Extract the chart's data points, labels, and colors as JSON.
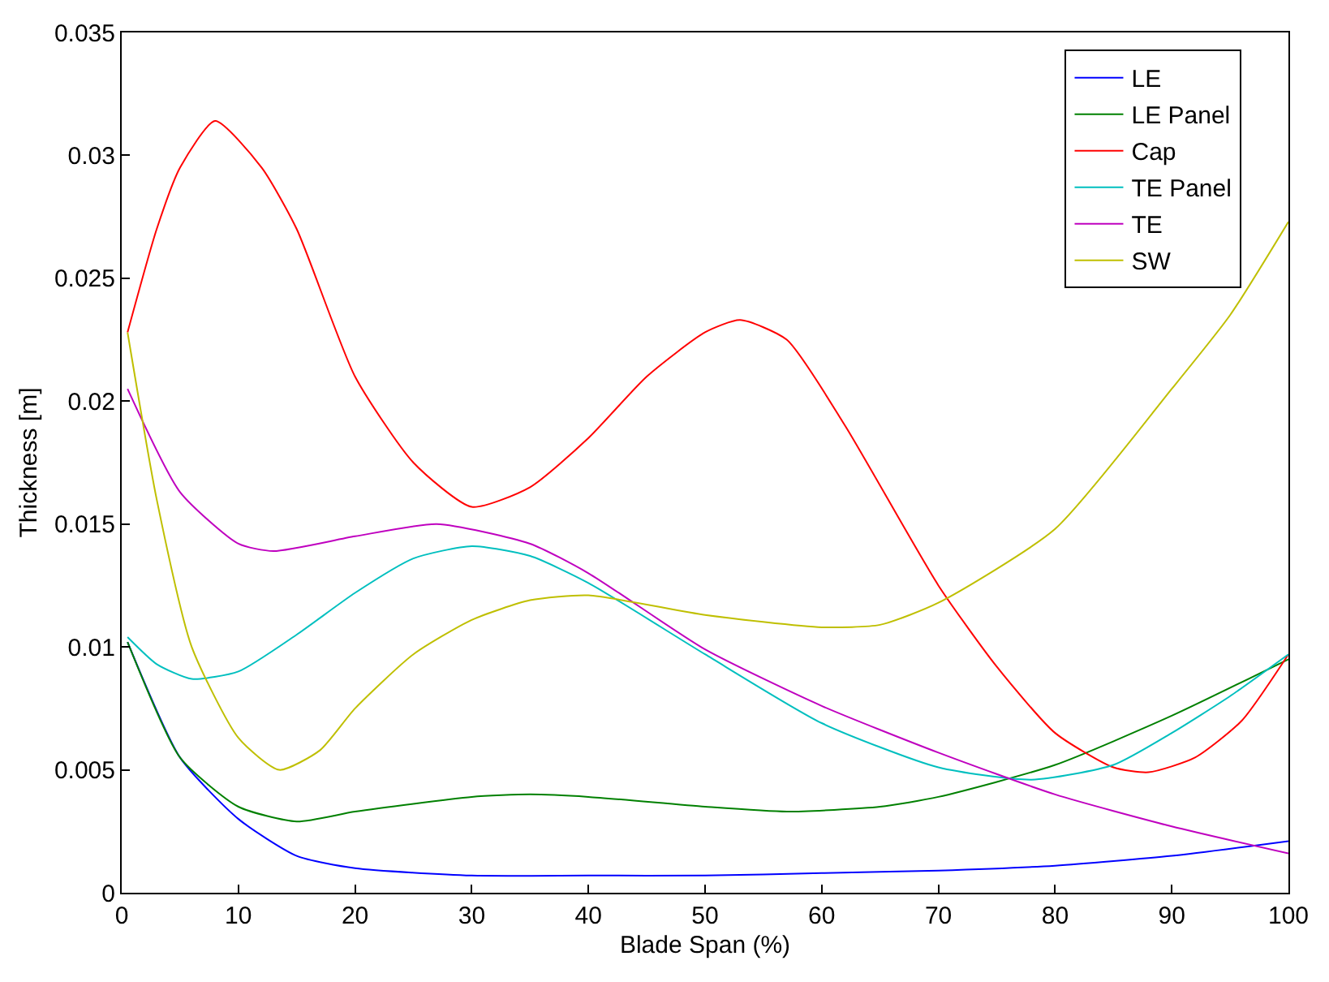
{
  "chart_data": {
    "type": "line",
    "xlabel": "Blade Span (%)",
    "ylabel": "Thickness [m]",
    "xlim": [
      0,
      100
    ],
    "xticks": [
      0,
      10,
      20,
      30,
      40,
      50,
      60,
      70,
      80,
      90,
      100
    ],
    "ylim": [
      0,
      0.035
    ],
    "yticks": [
      0,
      0.005,
      0.01,
      0.015,
      0.02,
      0.025,
      0.03,
      0.035
    ],
    "grid": false,
    "legend": "top right",
    "marker": "none",
    "line_style": "solid",
    "series": [
      {
        "name": "LE",
        "color": "#0000ff",
        "x": [
          0.5,
          5,
          10,
          15,
          20,
          30,
          40,
          50,
          60,
          70,
          80,
          90,
          100
        ],
        "values": [
          0.0102,
          0.0055,
          0.003,
          0.0015,
          0.001,
          0.0007,
          0.0007,
          0.0007,
          0.0008,
          0.0009,
          0.0011,
          0.0015,
          0.0021
        ]
      },
      {
        "name": "LE Panel",
        "color": "#008000",
        "x": [
          0.5,
          5,
          10,
          15,
          20,
          30,
          35,
          40,
          50,
          57,
          65,
          70,
          80,
          90,
          100
        ],
        "values": [
          0.0102,
          0.0055,
          0.0035,
          0.0029,
          0.0033,
          0.0039,
          0.004,
          0.0039,
          0.0035,
          0.0033,
          0.0035,
          0.0039,
          0.0052,
          0.0072,
          0.0095
        ]
      },
      {
        "name": "Cap",
        "color": "#ff0000",
        "x": [
          0.5,
          3,
          5,
          8,
          12,
          15,
          20,
          25,
          30,
          35,
          40,
          45,
          50,
          53,
          57,
          62,
          70,
          75,
          80,
          85,
          88,
          92,
          96,
          100
        ],
        "values": [
          0.0228,
          0.027,
          0.0295,
          0.0314,
          0.0295,
          0.027,
          0.021,
          0.0175,
          0.0157,
          0.0165,
          0.0185,
          0.021,
          0.0228,
          0.0233,
          0.0225,
          0.019,
          0.0125,
          0.0092,
          0.0065,
          0.0051,
          0.0049,
          0.0055,
          0.007,
          0.0097
        ]
      },
      {
        "name": "TE Panel",
        "color": "#00bfbf",
        "x": [
          0.5,
          3,
          6,
          10,
          15,
          20,
          25,
          30,
          35,
          40,
          50,
          60,
          70,
          78,
          85,
          90,
          95,
          100
        ],
        "values": [
          0.0104,
          0.0093,
          0.0087,
          0.009,
          0.0105,
          0.0122,
          0.0136,
          0.0141,
          0.0137,
          0.0126,
          0.0097,
          0.0069,
          0.0051,
          0.0046,
          0.0052,
          0.0065,
          0.008,
          0.0097
        ]
      },
      {
        "name": "TE",
        "color": "#bf00bf",
        "x": [
          0.5,
          5,
          10,
          13,
          20,
          27,
          35,
          40,
          50,
          60,
          70,
          80,
          90,
          100
        ],
        "values": [
          0.0205,
          0.0163,
          0.0142,
          0.0139,
          0.0145,
          0.015,
          0.0142,
          0.013,
          0.0099,
          0.0076,
          0.0057,
          0.004,
          0.0027,
          0.0016
        ]
      },
      {
        "name": "SW",
        "color": "#bfbf00",
        "x": [
          0.5,
          3,
          6,
          10,
          13.5,
          17,
          20,
          25,
          30,
          35,
          40,
          50,
          60,
          65,
          70,
          80,
          90,
          95,
          100
        ],
        "values": [
          0.0228,
          0.016,
          0.01,
          0.0063,
          0.005,
          0.0058,
          0.0075,
          0.0097,
          0.0111,
          0.0119,
          0.0121,
          0.0113,
          0.0108,
          0.0109,
          0.0118,
          0.0148,
          0.0205,
          0.0235,
          0.0273
        ]
      }
    ]
  }
}
